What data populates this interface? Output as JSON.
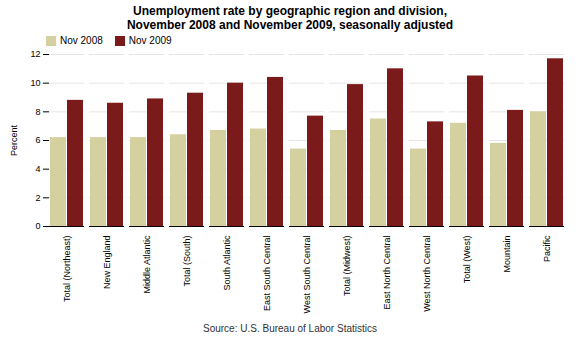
{
  "chart_data": {
    "type": "bar",
    "title": "Unemployment rate by geographic region and division,",
    "subtitle": "November 2008 and November 2009, seasonally adjusted",
    "ylabel": "Percent",
    "annotations": [
      "Source: U.S. Bureau of Labor Statistics"
    ],
    "categories": [
      "Total (Northeast)",
      "New England",
      "Middle Atlantic",
      "Total (South)",
      "South Atlantic",
      "East South Central",
      "West South Central",
      "Total (Midwest)",
      "East North Central",
      "West North Central",
      "Total (West)",
      "Mountain",
      "Pacific"
    ],
    "series": [
      {
        "name": "Nov 2008",
        "color": "#d4d0a0",
        "values": [
          6.2,
          6.2,
          6.2,
          6.4,
          6.7,
          6.8,
          5.4,
          6.7,
          7.5,
          5.4,
          7.2,
          5.8,
          8.0
        ]
      },
      {
        "name": "Nov 2009",
        "color": "#7b1a1a",
        "values": [
          8.8,
          8.6,
          8.9,
          9.3,
          10.0,
          10.4,
          7.7,
          9.9,
          11.0,
          7.3,
          10.5,
          8.1,
          11.7
        ]
      }
    ],
    "ylim": [
      0,
      12
    ],
    "yticks": [
      0,
      2,
      4,
      6,
      8,
      10,
      12
    ],
    "grid": true,
    "legend": "upper left"
  }
}
